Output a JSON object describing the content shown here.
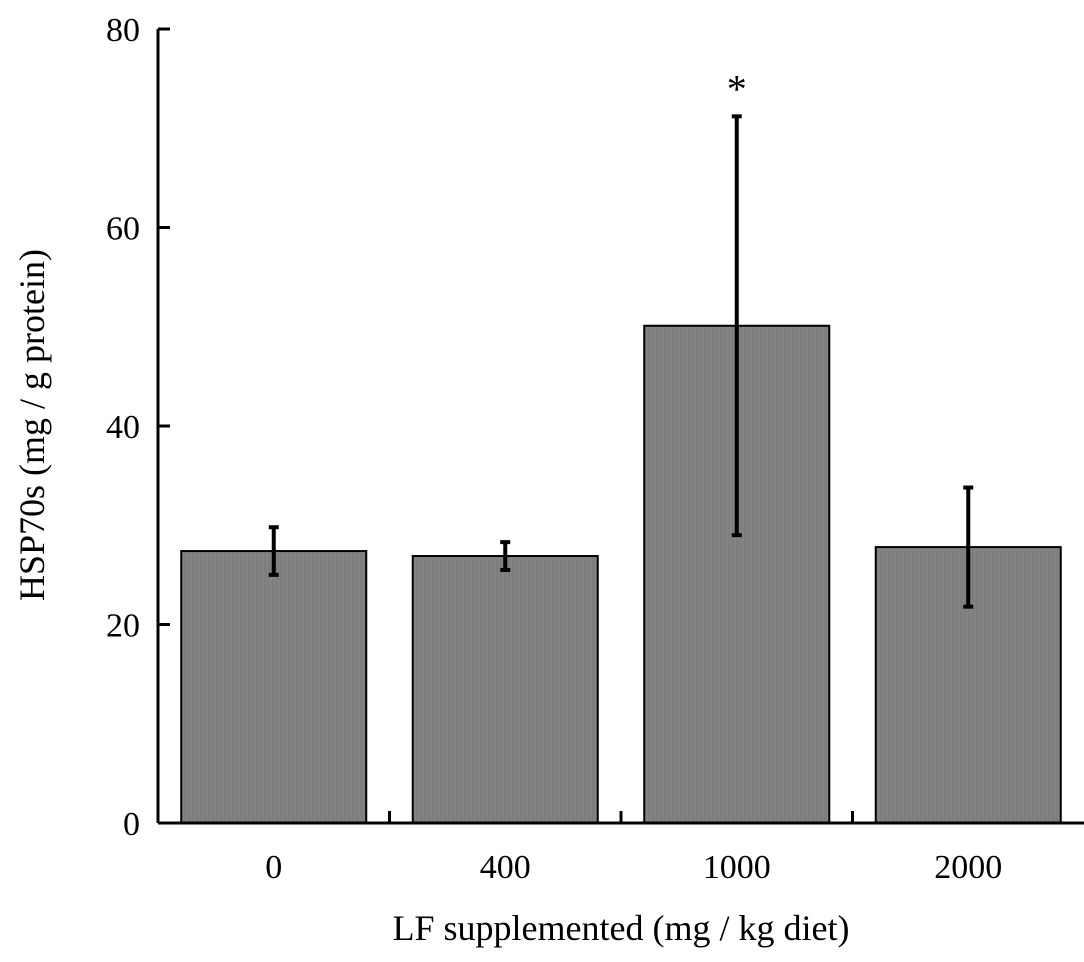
{
  "chart_data": {
    "type": "bar",
    "title": "",
    "xlabel": "LF supplemented (mg / kg diet)",
    "ylabel": "HSP70s (mg / g protein)",
    "categories": [
      "0",
      "400",
      "1000",
      "2000"
    ],
    "values": [
      27.4,
      26.9,
      50.1,
      27.8
    ],
    "errors": [
      2.4,
      1.4,
      21.1,
      6.0
    ],
    "annotations": [
      "",
      "",
      "*",
      ""
    ],
    "ylim": [
      0,
      80
    ],
    "yticks": [
      "0",
      "20",
      "40",
      "60",
      "80"
    ],
    "grid": false,
    "legend": "none",
    "bar_color": "#838383",
    "axis_color": "#000000"
  }
}
